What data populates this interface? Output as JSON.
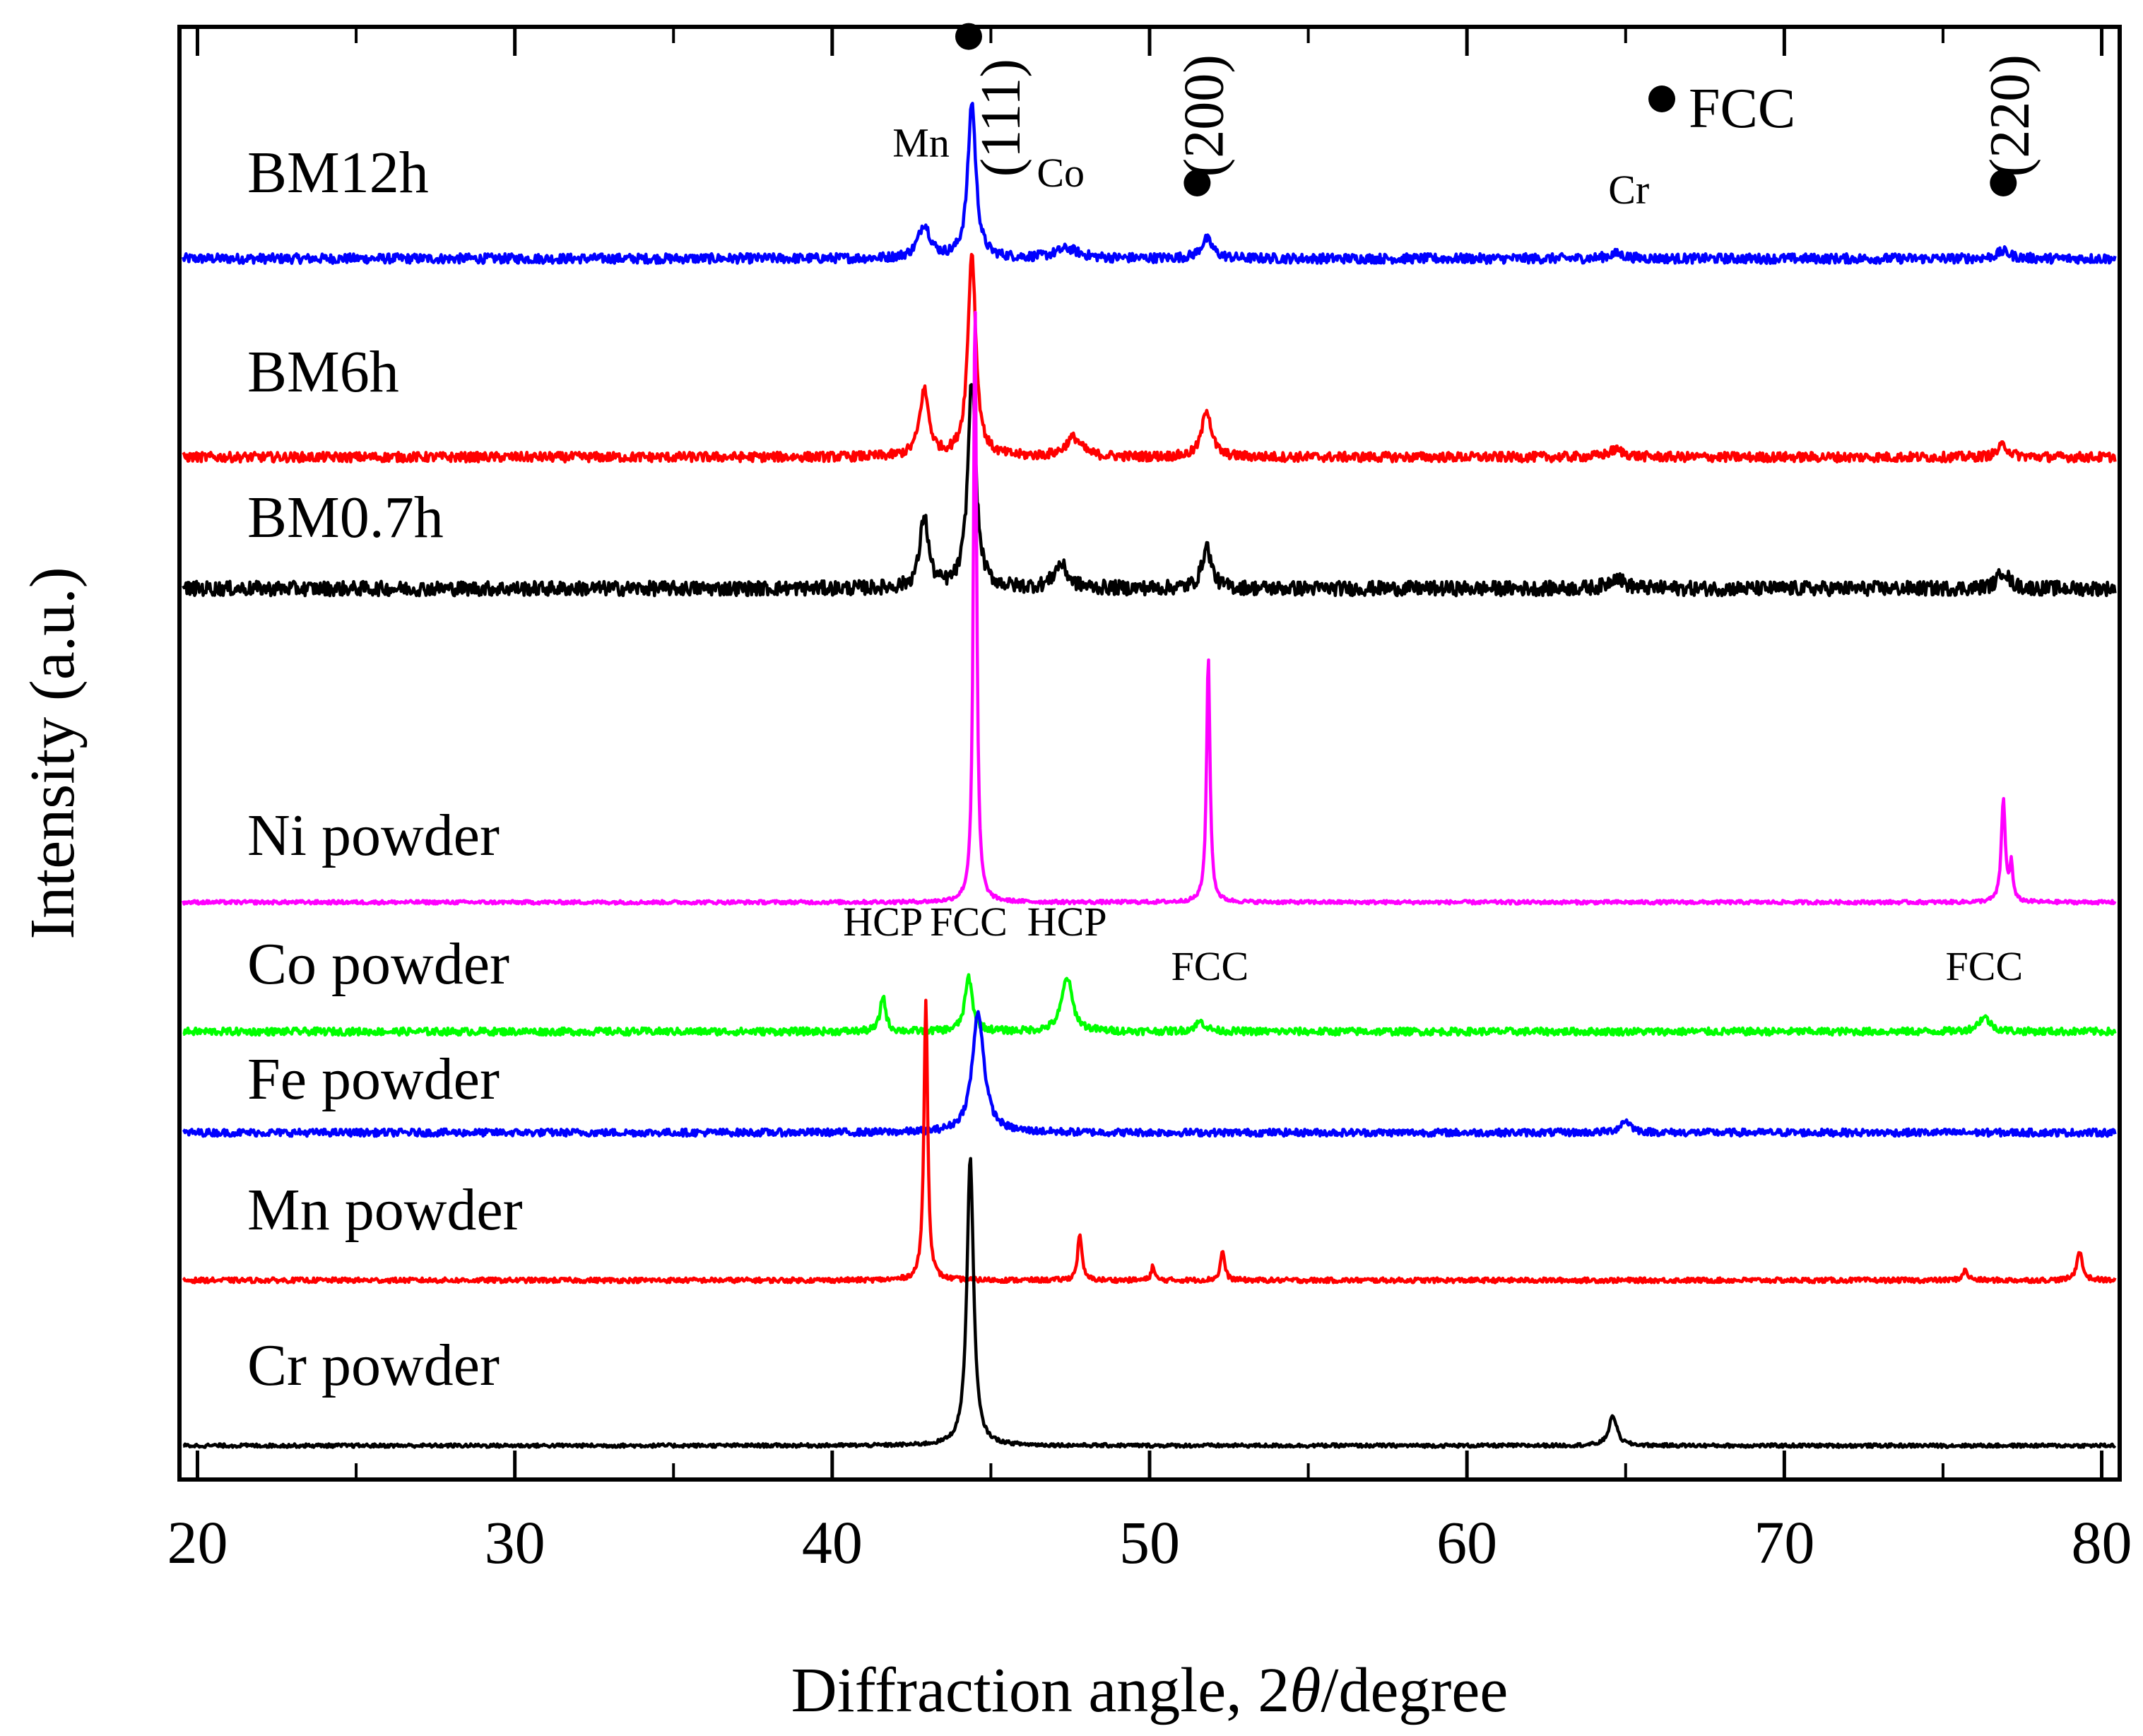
{
  "chart_data": {
    "type": "line",
    "title": "",
    "xlabel_prefix": "Diffraction angle, 2",
    "xlabel_symbol": "θ",
    "xlabel_suffix": "/degree",
    "ylabel": "Intensity (a.u.)",
    "xlim": [
      19.5,
      80.5
    ],
    "xticks": [
      20,
      30,
      40,
      50,
      60,
      70,
      80
    ],
    "xticks_minor": [
      25,
      35,
      45,
      55,
      65,
      75
    ],
    "legend": {
      "label": "FCC",
      "symbol": "filled-circle"
    },
    "series": [
      {
        "name": "BM12h",
        "label": "BM12h",
        "color": "#0000ff",
        "baseline": 0.0,
        "noise": 0.004,
        "peaks": [
          [
            42.9,
            0.028,
            0.45
          ],
          [
            44.4,
            0.13,
            0.3
          ],
          [
            47.4,
            0.008,
            0.9
          ],
          [
            51.8,
            0.016,
            0.45
          ],
          [
            64.7,
            0.004,
            0.6
          ],
          [
            76.9,
            0.006,
            0.5
          ]
        ],
        "annotations": [
          {
            "text": "Mn",
            "x": 42.8,
            "dy": 0.085,
            "style": "small"
          },
          {
            "text": "Co",
            "x": 47.2,
            "dy": 0.06,
            "style": "small"
          },
          {
            "text": "Cr",
            "x": 65.1,
            "dy": 0.046,
            "style": "small"
          },
          {
            "text": "●",
            "x": 44.3,
            "dy": 0.172,
            "style": "big"
          },
          {
            "text": "(111)",
            "x": 45.9,
            "dy": 0.068,
            "style": "big-rotated"
          },
          {
            "text": "●",
            "x": 51.5,
            "dy": 0.05,
            "style": "big"
          },
          {
            "text": "(200)",
            "x": 52.3,
            "dy": 0.068,
            "style": "big-rotated"
          },
          {
            "text": "●",
            "x": 76.9,
            "dy": 0.05,
            "style": "big"
          },
          {
            "text": "(220)",
            "x": 77.7,
            "dy": 0.068,
            "style": "big-rotated"
          }
        ]
      },
      {
        "name": "BM6h",
        "label": "BM6h",
        "color": "#ff0000",
        "baseline": 0.0,
        "noise": 0.004,
        "peaks": [
          [
            42.9,
            0.055,
            0.35
          ],
          [
            44.4,
            0.17,
            0.3
          ],
          [
            47.6,
            0.016,
            0.6
          ],
          [
            51.8,
            0.04,
            0.35
          ],
          [
            64.7,
            0.006,
            0.6
          ],
          [
            76.9,
            0.01,
            0.4
          ]
        ],
        "annotations": []
      },
      {
        "name": "BM0.7h",
        "label": "BM0.7h",
        "color": "#000000",
        "baseline": 0.0,
        "noise": 0.006,
        "peaks": [
          [
            42.9,
            0.06,
            0.32
          ],
          [
            44.4,
            0.175,
            0.3
          ],
          [
            47.2,
            0.02,
            0.5
          ],
          [
            51.8,
            0.035,
            0.35
          ],
          [
            64.7,
            0.01,
            0.5
          ],
          [
            76.9,
            0.015,
            0.4
          ]
        ],
        "annotations": []
      },
      {
        "name": "Ni powder",
        "label": "Ni powder",
        "color": "#ff00ff",
        "baseline": 0.0,
        "noise": 0.0015,
        "peaks": [
          [
            44.5,
            0.505,
            0.12
          ],
          [
            51.85,
            0.205,
            0.13
          ],
          [
            76.9,
            0.085,
            0.15
          ],
          [
            77.15,
            0.03,
            0.12
          ]
        ],
        "annotations": []
      },
      {
        "name": "Co powder",
        "label": "Co powder",
        "color": "#00ff00",
        "baseline": 0.0,
        "noise": 0.003,
        "peaks": [
          [
            41.6,
            0.03,
            0.2
          ],
          [
            44.3,
            0.045,
            0.28
          ],
          [
            47.4,
            0.045,
            0.4
          ],
          [
            51.6,
            0.008,
            0.4
          ],
          [
            76.3,
            0.012,
            0.45
          ]
        ],
        "annotations": [
          {
            "text": "HCP",
            "x": 41.6,
            "dy": 0.08,
            "style": "small"
          },
          {
            "text": "FCC",
            "x": 44.3,
            "dy": 0.08,
            "style": "small"
          },
          {
            "text": "HCP",
            "x": 47.4,
            "dy": 0.08,
            "style": "small"
          },
          {
            "text": "FCC",
            "x": 51.9,
            "dy": 0.043,
            "style": "small"
          },
          {
            "text": "FCC",
            "x": 76.3,
            "dy": 0.043,
            "style": "small"
          }
        ]
      },
      {
        "name": "Fe powder",
        "label": "Fe powder",
        "color": "#0000ff",
        "baseline": 0.0,
        "noise": 0.003,
        "peaks": [
          [
            44.6,
            0.1,
            0.45
          ],
          [
            65.0,
            0.01,
            0.4
          ]
        ],
        "annotations": []
      },
      {
        "name": "Mn powder",
        "label": "Mn powder",
        "color": "#ff0000",
        "baseline": 0.0,
        "noise": 0.002,
        "peaks": [
          [
            42.95,
            0.235,
            0.14
          ],
          [
            47.8,
            0.04,
            0.15
          ],
          [
            50.1,
            0.012,
            0.12
          ],
          [
            52.3,
            0.025,
            0.15
          ],
          [
            75.7,
            0.008,
            0.2
          ],
          [
            79.3,
            0.025,
            0.2
          ]
        ],
        "annotations": []
      },
      {
        "name": "Cr powder",
        "label": "Cr powder",
        "color": "#000000",
        "baseline": 0.0,
        "noise": 0.0015,
        "peaks": [
          [
            44.35,
            0.24,
            0.25
          ],
          [
            64.6,
            0.025,
            0.3
          ]
        ],
        "annotations": []
      }
    ]
  }
}
